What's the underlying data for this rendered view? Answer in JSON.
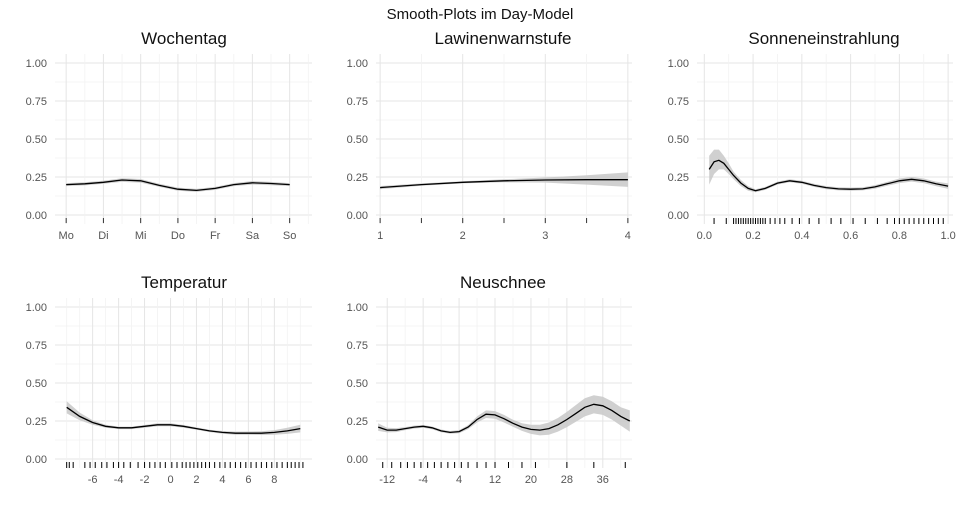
{
  "title": "Smooth-Plots im Day-Model",
  "chart_data": [
    {
      "type": "line",
      "title": "Wochentag",
      "ylim": [
        0,
        1
      ],
      "yticks": [
        "0.00",
        "0.25",
        "0.50",
        "0.75",
        "1.00"
      ],
      "xlim": [
        -0.3,
        6.6
      ],
      "xticks": [
        {
          "v": 0,
          "label": "Mo"
        },
        {
          "v": 1,
          "label": "Di"
        },
        {
          "v": 2,
          "label": "Mi"
        },
        {
          "v": 3,
          "label": "Do"
        },
        {
          "v": 4,
          "label": "Fr"
        },
        {
          "v": 5,
          "label": "Sa"
        },
        {
          "v": 6,
          "label": "So"
        }
      ],
      "tickmarks": [
        0,
        1,
        2,
        3,
        4,
        5,
        6
      ],
      "rug": [],
      "x": [
        0,
        0.5,
        1,
        1.5,
        2,
        2.5,
        3,
        3.5,
        4,
        4.5,
        5,
        5.5,
        6
      ],
      "y": [
        0.2,
        0.205,
        0.215,
        0.23,
        0.225,
        0.195,
        0.17,
        0.162,
        0.175,
        0.2,
        0.212,
        0.207,
        0.2
      ],
      "lower": [
        0.19,
        0.195,
        0.205,
        0.218,
        0.213,
        0.185,
        0.16,
        0.152,
        0.165,
        0.19,
        0.2,
        0.196,
        0.19
      ],
      "upper": [
        0.21,
        0.215,
        0.225,
        0.242,
        0.237,
        0.205,
        0.18,
        0.172,
        0.185,
        0.21,
        0.224,
        0.218,
        0.21
      ]
    },
    {
      "type": "line",
      "title": "Lawinenwarnstufe",
      "ylim": [
        0,
        1
      ],
      "yticks": [
        "0.00",
        "0.25",
        "0.50",
        "0.75",
        "1.00"
      ],
      "xlim": [
        0.95,
        4.05
      ],
      "xticks": [
        {
          "v": 1,
          "label": "1"
        },
        {
          "v": 2,
          "label": "2"
        },
        {
          "v": 3,
          "label": "3"
        },
        {
          "v": 4,
          "label": "4"
        }
      ],
      "tickmarks": [
        1,
        1.5,
        2,
        2.5,
        3,
        3.5,
        4
      ],
      "rug": [],
      "x": [
        1,
        1.5,
        2,
        2.5,
        3,
        3.5,
        4
      ],
      "y": [
        0.18,
        0.2,
        0.215,
        0.225,
        0.23,
        0.232,
        0.232
      ],
      "lower": [
        0.17,
        0.192,
        0.208,
        0.215,
        0.213,
        0.2,
        0.185
      ],
      "upper": [
        0.19,
        0.208,
        0.222,
        0.235,
        0.247,
        0.262,
        0.28
      ]
    },
    {
      "type": "line",
      "title": "Sonneneinstrahlung",
      "ylim": [
        0,
        1
      ],
      "yticks": [
        "0.00",
        "0.25",
        "0.50",
        "0.75",
        "1.00"
      ],
      "xlim": [
        -0.03,
        1.02
      ],
      "xticks": [
        {
          "v": 0,
          "label": "0.0"
        },
        {
          "v": 0.2,
          "label": "0.2"
        },
        {
          "v": 0.4,
          "label": "0.4"
        },
        {
          "v": 0.6,
          "label": "0.6"
        },
        {
          "v": 0.8,
          "label": "0.8"
        },
        {
          "v": 1,
          "label": "1.0"
        }
      ],
      "tickmarks": [],
      "rug": [
        0.04,
        0.09,
        0.12,
        0.13,
        0.14,
        0.15,
        0.16,
        0.17,
        0.18,
        0.19,
        0.2,
        0.21,
        0.22,
        0.23,
        0.24,
        0.25,
        0.27,
        0.29,
        0.31,
        0.33,
        0.36,
        0.39,
        0.43,
        0.47,
        0.52,
        0.56,
        0.61,
        0.66,
        0.71,
        0.75,
        0.78,
        0.8,
        0.82,
        0.84,
        0.86,
        0.88,
        0.9,
        0.92,
        0.94,
        0.96,
        0.98
      ],
      "x": [
        0.02,
        0.04,
        0.06,
        0.08,
        0.1,
        0.12,
        0.15,
        0.18,
        0.21,
        0.25,
        0.3,
        0.35,
        0.4,
        0.45,
        0.5,
        0.55,
        0.6,
        0.65,
        0.7,
        0.75,
        0.8,
        0.85,
        0.9,
        0.95,
        1.0
      ],
      "y": [
        0.3,
        0.35,
        0.36,
        0.34,
        0.3,
        0.26,
        0.21,
        0.175,
        0.16,
        0.175,
        0.21,
        0.225,
        0.215,
        0.195,
        0.18,
        0.172,
        0.17,
        0.172,
        0.185,
        0.205,
        0.225,
        0.235,
        0.225,
        0.205,
        0.19
      ],
      "lower": [
        0.2,
        0.27,
        0.3,
        0.3,
        0.27,
        0.235,
        0.19,
        0.16,
        0.15,
        0.165,
        0.2,
        0.215,
        0.205,
        0.185,
        0.17,
        0.162,
        0.16,
        0.162,
        0.173,
        0.192,
        0.21,
        0.22,
        0.21,
        0.19,
        0.172
      ],
      "upper": [
        0.39,
        0.43,
        0.43,
        0.39,
        0.34,
        0.285,
        0.23,
        0.19,
        0.17,
        0.185,
        0.22,
        0.235,
        0.225,
        0.205,
        0.19,
        0.182,
        0.18,
        0.182,
        0.197,
        0.218,
        0.24,
        0.25,
        0.24,
        0.22,
        0.208
      ]
    },
    {
      "type": "line",
      "title": "Temperatur",
      "ylim": [
        0,
        1
      ],
      "yticks": [
        "0.00",
        "0.25",
        "0.50",
        "0.75",
        "1.00"
      ],
      "xlim": [
        -8.9,
        10.9
      ],
      "xticks": [
        {
          "v": -6,
          "label": "-6"
        },
        {
          "v": -4,
          "label": "-4"
        },
        {
          "v": -2,
          "label": "-2"
        },
        {
          "v": 0,
          "label": "0"
        },
        {
          "v": 2,
          "label": "2"
        },
        {
          "v": 4,
          "label": "4"
        },
        {
          "v": 6,
          "label": "6"
        },
        {
          "v": 8,
          "label": "8"
        }
      ],
      "tickmarks": [],
      "rug": [
        -8.0,
        -7.8,
        -7.5,
        -6.6,
        -6.2,
        -5.8,
        -5.3,
        -4.9,
        -4.4,
        -4.0,
        -3.6,
        -3.1,
        -2.5,
        -2.0,
        -1.6,
        -1.2,
        -0.8,
        -0.4,
        0.1,
        0.5,
        0.9,
        1.2,
        1.5,
        1.8,
        2.1,
        2.4,
        2.7,
        3.0,
        3.4,
        3.8,
        4.2,
        4.6,
        5.0,
        5.4,
        5.8,
        6.2,
        6.6,
        7.0,
        7.4,
        7.8,
        8.2,
        8.6,
        9.0,
        9.3,
        9.6,
        9.9,
        10.2
      ],
      "x": [
        -8,
        -7,
        -6,
        -5,
        -4,
        -3,
        -2,
        -1,
        0,
        1,
        2,
        3,
        4,
        5,
        6,
        7,
        8,
        9,
        10
      ],
      "y": [
        0.34,
        0.28,
        0.24,
        0.215,
        0.205,
        0.205,
        0.215,
        0.225,
        0.225,
        0.215,
        0.2,
        0.185,
        0.175,
        0.17,
        0.17,
        0.17,
        0.175,
        0.185,
        0.2
      ],
      "lower": [
        0.3,
        0.255,
        0.225,
        0.205,
        0.197,
        0.197,
        0.206,
        0.215,
        0.215,
        0.206,
        0.192,
        0.177,
        0.166,
        0.16,
        0.159,
        0.158,
        0.16,
        0.165,
        0.175
      ],
      "upper": [
        0.38,
        0.305,
        0.255,
        0.225,
        0.213,
        0.213,
        0.224,
        0.235,
        0.235,
        0.224,
        0.208,
        0.193,
        0.184,
        0.18,
        0.181,
        0.182,
        0.19,
        0.205,
        0.225
      ]
    },
    {
      "type": "line",
      "title": "Neuschnee",
      "ylim": [
        0,
        1
      ],
      "yticks": [
        "0.00",
        "0.25",
        "0.50",
        "0.75",
        "1.00"
      ],
      "xlim": [
        -14.5,
        42.5
      ],
      "xticks": [
        {
          "v": -12,
          "label": "-12"
        },
        {
          "v": -4,
          "label": "-4"
        },
        {
          "v": 4,
          "label": "4"
        },
        {
          "v": 12,
          "label": "12"
        },
        {
          "v": 20,
          "label": "20"
        },
        {
          "v": 28,
          "label": "28"
        },
        {
          "v": 36,
          "label": "36"
        }
      ],
      "tickmarks": [],
      "rug": [
        -13.0,
        -11.0,
        -9.0,
        -7.5,
        -6.0,
        -4.5,
        -3.0,
        -1.5,
        0.0,
        1.5,
        3.0,
        4.5,
        6.0,
        8.0,
        10.0,
        12.0,
        15.0,
        18.0,
        21.0,
        28.0,
        34.0,
        41.0
      ],
      "x": [
        -14,
        -12,
        -10,
        -8,
        -6,
        -4,
        -2,
        0,
        2,
        4,
        6,
        8,
        10,
        12,
        14,
        16,
        18,
        20,
        22,
        24,
        26,
        28,
        30,
        32,
        34,
        36,
        38,
        40,
        42
      ],
      "y": [
        0.21,
        0.19,
        0.19,
        0.2,
        0.21,
        0.215,
        0.205,
        0.185,
        0.175,
        0.18,
        0.21,
        0.26,
        0.295,
        0.29,
        0.265,
        0.235,
        0.21,
        0.195,
        0.19,
        0.2,
        0.225,
        0.26,
        0.3,
        0.34,
        0.36,
        0.35,
        0.32,
        0.28,
        0.25
      ],
      "lower": [
        0.185,
        0.175,
        0.177,
        0.19,
        0.2,
        0.206,
        0.196,
        0.176,
        0.166,
        0.17,
        0.197,
        0.24,
        0.27,
        0.265,
        0.24,
        0.212,
        0.185,
        0.165,
        0.155,
        0.16,
        0.18,
        0.21,
        0.245,
        0.28,
        0.3,
        0.29,
        0.26,
        0.22,
        0.18
      ],
      "upper": [
        0.235,
        0.205,
        0.203,
        0.21,
        0.22,
        0.224,
        0.214,
        0.194,
        0.184,
        0.19,
        0.223,
        0.28,
        0.32,
        0.315,
        0.29,
        0.258,
        0.235,
        0.225,
        0.225,
        0.24,
        0.27,
        0.31,
        0.355,
        0.4,
        0.42,
        0.41,
        0.38,
        0.34,
        0.32
      ]
    }
  ]
}
